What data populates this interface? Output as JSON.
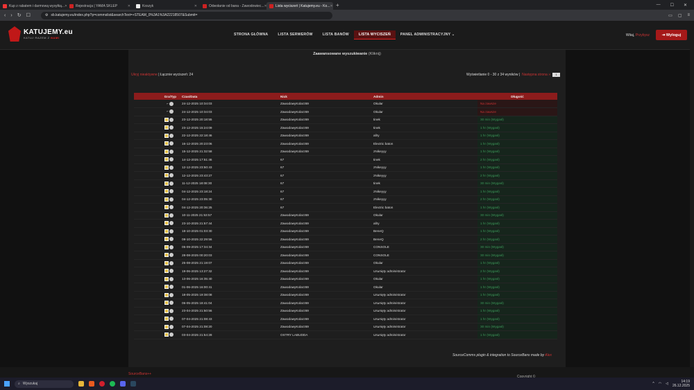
{
  "browser": {
    "tabs": [
      {
        "title": "Kup z rabatem i darmową wysyłką...",
        "color": "#e33"
      },
      {
        "title": "Rejestracja | YAMA SKLEP",
        "color": "#c22"
      },
      {
        "title": "Koszyk",
        "color": "#eee"
      },
      {
        "title": "Odwołanie od bana - Zawodowiec...",
        "color": "#c22"
      },
      {
        "title": "Lista wyciszeń | Katujemy.eu - Ko...",
        "color": "#c22"
      }
    ],
    "new_tab": "+",
    "url": "sb.katujemy.eu/index.php?p=commslist&searchText=+STEAM_0%3A1%3A22218507&Submit="
  },
  "header": {
    "logo_name": "KATUJEMY.eu",
    "logo_sub_a": "KATUJ RAZEM Z",
    "logo_sub_b": "NAMI",
    "nav": [
      {
        "label": "STRONA GŁÓWNA",
        "active": false
      },
      {
        "label": "LISTA SERWERÓW",
        "active": false
      },
      {
        "label": "LISTA BANÓW",
        "active": false
      },
      {
        "label": "LISTA WYCISZEŃ",
        "active": true
      },
      {
        "label": "PANEL ADMINISTRACYJNY ⌄",
        "active": false
      }
    ],
    "welcome": "Witaj,",
    "user": "Przybysz",
    "logout": "Wyloguj"
  },
  "content": {
    "advanced_search": "Zaawansowane wyszukiwanie",
    "advanced_click": "(Kliknij)",
    "hide_inactive": "Ukryj nieaktywne",
    "total": "| Łącznie wyciszeń: 24",
    "showing": "Wyświetlanie 0 - 30 z 34 wyników |",
    "next_page": "Następna strona »",
    "page_select": "1",
    "columns": [
      "Gra/Typ",
      "Czas/Data",
      "Nick",
      "Admin",
      "Długość"
    ],
    "rows": [
      [
        "24-12-2025 10:34:03",
        "ZawodowyKolarz69",
        "Okular",
        "Na zawsze",
        "perm"
      ],
      [
        "24-12-2025 10:34:03",
        "ZawodowyKolarz69",
        "Okular",
        "Na zawsze",
        "perm"
      ],
      [
        "23-12-2025 20:18:55",
        "ZawodowyKolarz69",
        "tinek",
        "30 min (Wygasł)",
        "ok"
      ],
      [
        "23-12-2025 15:24:09",
        "ZawodowyKolarz69",
        "tinek",
        "1 hr (Wygasł)",
        "ok"
      ],
      [
        "22-12-2025 22:18:46",
        "ZawodowyKolarz69",
        "allry",
        "1 hr (Wygasł)",
        "ok"
      ],
      [
        "16-12-2025 20:23:06",
        "ZawodowyKolarz69",
        "Electric baton",
        "1 hr (Wygasł)",
        "ok"
      ],
      [
        "15-12-2025 21:32:58",
        "ZawodowyKolarz69",
        "zNikeyyy",
        "1 hr (Wygasł)",
        "ok"
      ],
      [
        "14-12-2025 17:51:46",
        "67",
        "tinek",
        "2 hr (Wygasł)",
        "ok"
      ],
      [
        "12-12-2025 23:50:43",
        "67",
        "zNikeyyy",
        "1 hr (Wygasł)",
        "ok"
      ],
      [
        "12-12-2025 23:43:27",
        "67",
        "zNikeyyy",
        "2 hr (Wygasł)",
        "ok"
      ],
      [
        "11-12-2025 18:08:30",
        "67",
        "tinek",
        "30 min (Wygasł)",
        "ok"
      ],
      [
        "04-12-2025 23:18:24",
        "67",
        "zNikeyyy",
        "1 hr (Wygasł)",
        "ok"
      ],
      [
        "04-12-2025 23:05:30",
        "67",
        "zNikeyyy",
        "2 hr (Wygasł)",
        "ok"
      ],
      [
        "04-12-2025 20:36:25",
        "67",
        "Electric baton",
        "1 hr (Wygasł)",
        "ok"
      ],
      [
        "10-11-2025 21:53:57",
        "ZawodowyKolarz69",
        "Okular",
        "30 min (Wygasł)",
        "ok"
      ],
      [
        "23-10-2025 21:57:44",
        "ZawodowyKolarz69",
        "allry",
        "1 hr (Wygasł)",
        "ok"
      ],
      [
        "18-10-2025 01:03:30",
        "ZawodowyKolarz69",
        "BeneQ",
        "1 hr (Wygasł)",
        "ok"
      ],
      [
        "08-10-2025 22:29:56",
        "ZawodowyKolarz69",
        "BeneQ",
        "2 hr (Wygasł)",
        "ok"
      ],
      [
        "05-09-2025 17:34:34",
        "ZawodowyKolarz69",
        "CONSOLE",
        "30 min (Wygasł)",
        "ok"
      ],
      [
        "28-08-2025 00:20:03",
        "ZawodowyKolarz69",
        "CONSOLE",
        "30 min (Wygasł)",
        "ok"
      ],
      [
        "25-08-2025 21:19:07",
        "ZawodowyKolarz69",
        "Okular",
        "1 hr (Wygasł)",
        "ok"
      ],
      [
        "19-06-2025 13:27:32",
        "ZawodowyKolarz69",
        "Usunięty administrator",
        "2 hr (Wygasł)",
        "ok"
      ],
      [
        "13-06-2025 16:35:40",
        "ZawodowyKolarz69",
        "Okular",
        "1 hr (Wygasł)",
        "ok"
      ],
      [
        "01-06-2025 16:00:41",
        "ZawodowyKolarz69",
        "Okular",
        "1 hr (Wygasł)",
        "ok"
      ],
      [
        "18-05-2025 19:38:08",
        "ZawodowyKolarz69",
        "Usunięty administrator",
        "1 hr (Wygasł)",
        "ok"
      ],
      [
        "06-05-2025 18:41:04",
        "ZawodowyKolarz69",
        "Usunięty administrator",
        "30 min (Wygasł)",
        "ok"
      ],
      [
        "23-04-2025 21:50:56",
        "ZawodowyKolarz69",
        "Usunięty administrator",
        "1 hr (Wygasł)",
        "ok"
      ],
      [
        "07-04-2025 21:08:43",
        "ZawodowyKolarz69",
        "Usunięty administrator",
        "1 hr (Wygasł)",
        "ok"
      ],
      [
        "07-04-2025 21:08:20",
        "ZawodowyKolarz69",
        "Usunięty administrator",
        "30 min (Wygasł)",
        "ok"
      ],
      [
        "03-04-2025 21:54:28",
        "OSTRY LABUDDA",
        "Usunięty administrator",
        "1 hr (Wygasł)",
        "ok"
      ]
    ],
    "plugin_note": "SourceComms plugin & integration to SourceBans made by",
    "plugin_author": "Alex"
  },
  "footer": {
    "left": "SourceBans++",
    "right": "Copyright ©"
  },
  "taskbar": {
    "search": "Wyszukaj",
    "time": "14:19",
    "date": "26.12.2025"
  }
}
